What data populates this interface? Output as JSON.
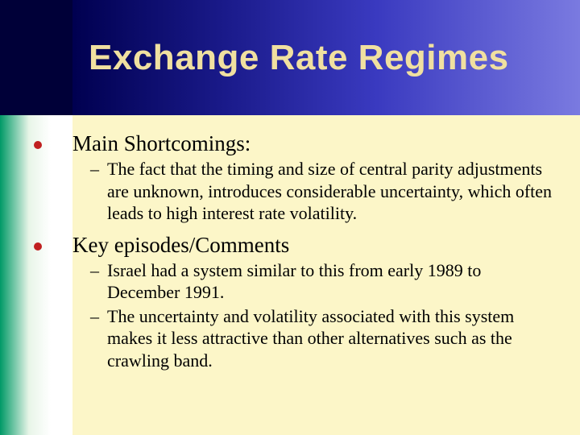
{
  "slide": {
    "title": "Exchange Rate Regimes",
    "colors": {
      "title_text": "#f0e0a0",
      "title_gradient_start": "#000050",
      "title_gradient_end": "#7a7ae0",
      "body_bg": "#fcf6c8",
      "bullet_dot": "#c02020",
      "left_strip_top": "#000038",
      "left_strip_gradient_start": "#009966",
      "divider": "#7a5c00"
    },
    "typography": {
      "title_font": "Impact",
      "title_size_pt": 33,
      "body_font": "Times New Roman",
      "heading_size_pt": 20,
      "sub_size_pt": 16
    },
    "bullets": [
      {
        "heading": "Main Shortcomings:",
        "subs": [
          "The fact that the timing and size of central parity adjustments are unknown, introduces considerable uncertainty, which often leads to high interest rate volatility."
        ]
      },
      {
        "heading": "Key episodes/Comments",
        "subs": [
          "Israel had a system similar to this from early 1989 to December 1991.",
          "The uncertainty and volatility associated with this system makes it less attractive than other alternatives such as the crawling band."
        ]
      }
    ]
  }
}
